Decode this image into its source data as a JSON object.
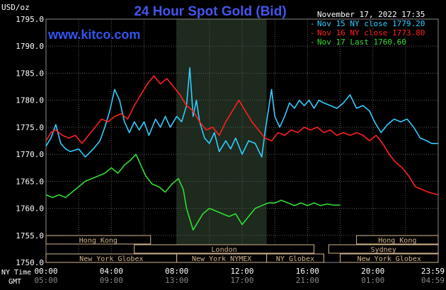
{
  "chart_data": {
    "type": "line",
    "title": "24 Hour Spot Gold (Bid)",
    "watermark": "www.kitco.com",
    "timestamp": "November 17, 2022 17:35",
    "ylabel": "USD/oz",
    "ylim": [
      1750,
      1795
    ],
    "y_ticks": [
      1795,
      1790,
      1785,
      1780,
      1775,
      1770,
      1765,
      1760,
      1755,
      1750
    ],
    "y_tick_labels": [
      "1795.0",
      "1790.0",
      "1785.0",
      "1780.0",
      "1775.0",
      "1770.0",
      "1765.0",
      "1760.0",
      "1755.0",
      "1750.0"
    ],
    "x_range_hours": [
      0,
      24
    ],
    "x_ticks_hours": [
      0,
      4,
      8,
      12,
      16,
      20,
      23.983
    ],
    "x_tick_labels_ny": [
      "00:00",
      "04:00",
      "08:00",
      "12:00",
      "16:00",
      "20:00",
      "23:59"
    ],
    "x_tick_labels_gmt": [
      "05:00",
      "09:00",
      "13:00",
      "17:00",
      "21:00",
      "01:00",
      "04:59"
    ],
    "row_label_ny": "NY Time",
    "row_label_gmt": "GMT",
    "grid": true,
    "shaded_region_hours": [
      8,
      13.5
    ],
    "legend_position": "top-right",
    "series": [
      {
        "name": "Nov 15 NY close 1779.20",
        "color": "#33ccff",
        "points": [
          [
            0,
            1771.5
          ],
          [
            0.3,
            1773
          ],
          [
            0.6,
            1775.5
          ],
          [
            0.9,
            1772
          ],
          [
            1.2,
            1771
          ],
          [
            1.5,
            1770.5
          ],
          [
            2,
            1771
          ],
          [
            2.4,
            1769.5
          ],
          [
            2.9,
            1771
          ],
          [
            3.3,
            1772.5
          ],
          [
            3.6,
            1775
          ],
          [
            3.9,
            1778
          ],
          [
            4.2,
            1782
          ],
          [
            4.5,
            1780
          ],
          [
            4.8,
            1776
          ],
          [
            5.1,
            1774
          ],
          [
            5.4,
            1776
          ],
          [
            5.7,
            1774.5
          ],
          [
            6,
            1776
          ],
          [
            6.3,
            1773.5
          ],
          [
            6.7,
            1776.5
          ],
          [
            7,
            1775
          ],
          [
            7.3,
            1777
          ],
          [
            7.6,
            1775
          ],
          [
            8,
            1777
          ],
          [
            8.3,
            1776
          ],
          [
            8.6,
            1779
          ],
          [
            8.8,
            1786
          ],
          [
            9,
            1777
          ],
          [
            9.2,
            1780
          ],
          [
            9.4,
            1776
          ],
          [
            9.7,
            1773
          ],
          [
            10,
            1772
          ],
          [
            10.3,
            1774
          ],
          [
            10.6,
            1770.5
          ],
          [
            11,
            1772.5
          ],
          [
            11.3,
            1771
          ],
          [
            11.6,
            1773
          ],
          [
            12,
            1770
          ],
          [
            12.4,
            1772.5
          ],
          [
            12.8,
            1772
          ],
          [
            13.2,
            1769.5
          ],
          [
            13.4,
            1774
          ],
          [
            13.6,
            1778
          ],
          [
            13.8,
            1782
          ],
          [
            14,
            1777
          ],
          [
            14.3,
            1775
          ],
          [
            14.6,
            1777
          ],
          [
            14.9,
            1779.5
          ],
          [
            15.2,
            1778.5
          ],
          [
            15.5,
            1780
          ],
          [
            15.8,
            1779
          ],
          [
            16.1,
            1780
          ],
          [
            16.4,
            1778.5
          ],
          [
            16.7,
            1780
          ],
          [
            17,
            1779.5
          ],
          [
            17.4,
            1779
          ],
          [
            17.8,
            1778.5
          ],
          [
            18.2,
            1779.5
          ],
          [
            18.6,
            1781
          ],
          [
            19,
            1778.5
          ],
          [
            19.4,
            1779
          ],
          [
            19.8,
            1778
          ],
          [
            20.1,
            1776
          ],
          [
            20.5,
            1774
          ],
          [
            20.9,
            1775.5
          ],
          [
            21.3,
            1776.5
          ],
          [
            21.7,
            1776
          ],
          [
            22.1,
            1776.5
          ],
          [
            22.5,
            1775
          ],
          [
            22.9,
            1773
          ],
          [
            23.3,
            1772.5
          ],
          [
            23.6,
            1772
          ],
          [
            23.98,
            1772
          ]
        ]
      },
      {
        "name": "Nov 16 NY close 1773.80",
        "color": "#ff2020",
        "points": [
          [
            0,
            1772.5
          ],
          [
            0.3,
            1774
          ],
          [
            0.6,
            1774.5
          ],
          [
            1,
            1773.5
          ],
          [
            1.4,
            1773
          ],
          [
            1.8,
            1773.5
          ],
          [
            2.2,
            1772
          ],
          [
            2.6,
            1773.5
          ],
          [
            3,
            1775
          ],
          [
            3.4,
            1776.5
          ],
          [
            3.8,
            1776
          ],
          [
            4.2,
            1777
          ],
          [
            4.6,
            1777.5
          ],
          [
            5,
            1776.5
          ],
          [
            5.4,
            1779
          ],
          [
            5.8,
            1781
          ],
          [
            6.2,
            1783
          ],
          [
            6.6,
            1784.5
          ],
          [
            7,
            1783
          ],
          [
            7.4,
            1784
          ],
          [
            7.8,
            1782.5
          ],
          [
            8.2,
            1781
          ],
          [
            8.6,
            1779
          ],
          [
            9,
            1778
          ],
          [
            9.4,
            1776
          ],
          [
            9.8,
            1774.5
          ],
          [
            10.2,
            1775
          ],
          [
            10.6,
            1773.5
          ],
          [
            11,
            1776
          ],
          [
            11.4,
            1778
          ],
          [
            11.8,
            1780
          ],
          [
            12.2,
            1778
          ],
          [
            12.6,
            1776
          ],
          [
            13,
            1774.5
          ],
          [
            13.4,
            1773
          ],
          [
            13.8,
            1772.5
          ],
          [
            14.2,
            1774
          ],
          [
            14.6,
            1773.5
          ],
          [
            15,
            1774.5
          ],
          [
            15.4,
            1774
          ],
          [
            15.8,
            1775
          ],
          [
            16.2,
            1774.5
          ],
          [
            16.6,
            1775
          ],
          [
            17,
            1774
          ],
          [
            17.4,
            1774.5
          ],
          [
            17.8,
            1773.5
          ],
          [
            18.2,
            1774
          ],
          [
            18.6,
            1773.5
          ],
          [
            19,
            1774
          ],
          [
            19.4,
            1773.5
          ],
          [
            19.8,
            1772.5
          ],
          [
            20.2,
            1773.5
          ],
          [
            20.6,
            1772
          ],
          [
            21,
            1770
          ],
          [
            21.4,
            1768.5
          ],
          [
            21.8,
            1767.5
          ],
          [
            22.2,
            1766
          ],
          [
            22.6,
            1764
          ],
          [
            23,
            1763.5
          ],
          [
            23.4,
            1763
          ],
          [
            23.98,
            1762.5
          ]
        ]
      },
      {
        "name": "Nov 17 Last 1760.60",
        "color": "#33dd33",
        "points": [
          [
            0,
            1762.5
          ],
          [
            0.4,
            1762
          ],
          [
            0.8,
            1762.5
          ],
          [
            1.2,
            1762
          ],
          [
            1.6,
            1763
          ],
          [
            2,
            1764
          ],
          [
            2.4,
            1765
          ],
          [
            2.8,
            1765.5
          ],
          [
            3.2,
            1766
          ],
          [
            3.6,
            1766.5
          ],
          [
            4,
            1767.5
          ],
          [
            4.4,
            1766.5
          ],
          [
            4.8,
            1768
          ],
          [
            5.2,
            1769
          ],
          [
            5.5,
            1770
          ],
          [
            5.8,
            1768
          ],
          [
            6.1,
            1766
          ],
          [
            6.5,
            1764.5
          ],
          [
            6.9,
            1764
          ],
          [
            7.3,
            1763
          ],
          [
            7.7,
            1764.5
          ],
          [
            8.1,
            1765.5
          ],
          [
            8.4,
            1763.5
          ],
          [
            8.6,
            1760
          ],
          [
            8.8,
            1758
          ],
          [
            9,
            1756
          ],
          [
            9.3,
            1757.5
          ],
          [
            9.6,
            1759
          ],
          [
            10,
            1760
          ],
          [
            10.4,
            1759.5
          ],
          [
            10.8,
            1759
          ],
          [
            11.2,
            1758.5
          ],
          [
            11.6,
            1759
          ],
          [
            12,
            1757
          ],
          [
            12.4,
            1758.5
          ],
          [
            12.8,
            1760
          ],
          [
            13.2,
            1760.5
          ],
          [
            13.6,
            1761
          ],
          [
            14,
            1761
          ],
          [
            14.4,
            1761.5
          ],
          [
            14.8,
            1761
          ],
          [
            15.2,
            1760.5
          ],
          [
            15.6,
            1761
          ],
          [
            16,
            1760.5
          ],
          [
            16.4,
            1761
          ],
          [
            16.8,
            1760.5
          ],
          [
            17.2,
            1760.8
          ],
          [
            17.6,
            1760.6
          ],
          [
            18,
            1760.6
          ]
        ]
      }
    ],
    "sessions": [
      {
        "label": "Hong Kong",
        "row": 0,
        "start": -5,
        "end": 6.4
      },
      {
        "label": "London",
        "row": 1,
        "start": 5.4,
        "end": 16.4
      },
      {
        "label": "New York Globex",
        "row": 2,
        "start": 0,
        "end": 8
      },
      {
        "label": "New York NYMEX",
        "row": 2,
        "start": 8,
        "end": 13.5
      },
      {
        "label": "NY Globex",
        "row": 2,
        "start": 13.5,
        "end": 17
      },
      {
        "label": "Hong Kong",
        "row": 0,
        "start": 19,
        "end": 26
      },
      {
        "label": "Sydney",
        "row": 1,
        "start": 17.3,
        "end": 26
      },
      {
        "label": "New York Globex",
        "row": 2,
        "start": 18,
        "end": 26
      }
    ]
  }
}
